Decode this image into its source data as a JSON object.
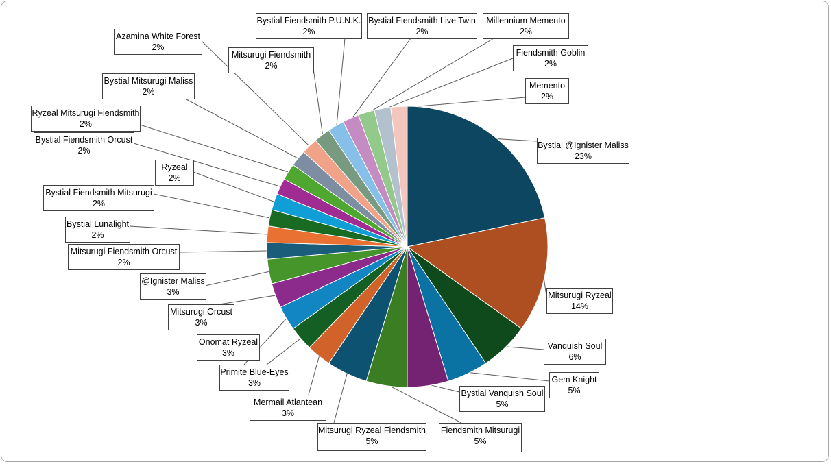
{
  "chart_data": {
    "type": "pie",
    "title": "",
    "unit": "%",
    "slices": [
      {
        "name": "Bystial @Ignister Maliss",
        "value": 23,
        "label": "23%",
        "color": "#0d4660"
      },
      {
        "name": "Mitsurugi Ryzeal",
        "value": 14,
        "label": "14%",
        "color": "#ae4f22"
      },
      {
        "name": "Vanquish Soul",
        "value": 6,
        "label": "6%",
        "color": "#0f4a1c"
      },
      {
        "name": "Gem Knight",
        "value": 5,
        "label": "5%",
        "color": "#0a73a3"
      },
      {
        "name": "Bystial Vanquish Soul",
        "value": 5,
        "label": "5%",
        "color": "#742373"
      },
      {
        "name": "Fiendsmith Mitsurugi",
        "value": 5,
        "label": "5%",
        "color": "#3a7d22"
      },
      {
        "name": "Mitsurugi Ryzeal Fiendsmith",
        "value": 5,
        "label": "5%",
        "color": "#0d5270"
      },
      {
        "name": "Mermail Atlantean",
        "value": 3,
        "label": "3%",
        "color": "#d0622a"
      },
      {
        "name": "Primite Blue-Eyes",
        "value": 3,
        "label": "3%",
        "color": "#145f23"
      },
      {
        "name": "Onomat Ryzeal",
        "value": 3,
        "label": "3%",
        "color": "#1286c3"
      },
      {
        "name": "Mitsurugi Orcust",
        "value": 3,
        "label": "3%",
        "color": "#8c2b8c"
      },
      {
        "name": "@Ignister Maliss",
        "value": 3,
        "label": "3%",
        "color": "#45952a"
      },
      {
        "name": "Mitsurugi Fiendsmith Orcust",
        "value": 2,
        "label": "2%",
        "color": "#1a5d7a"
      },
      {
        "name": "Bystial Lunalight",
        "value": 2,
        "label": "2%",
        "color": "#e97132"
      },
      {
        "name": "Bystial Fiendsmith Mitsurugi",
        "value": 2,
        "label": "2%",
        "color": "#196b24"
      },
      {
        "name": "Ryzeal",
        "value": 2,
        "label": "2%",
        "color": "#0f9ed5"
      },
      {
        "name": "Bystial Fiendsmith Orcust",
        "value": 2,
        "label": "2%",
        "color": "#a02b93"
      },
      {
        "name": "Ryzeal Mitsurugi Fiendsmith",
        "value": 2,
        "label": "2%",
        "color": "#4ea72e"
      },
      {
        "name": "Bystial Mitsurugi Maliss",
        "value": 2,
        "label": "2%",
        "color": "#7d8ea3"
      },
      {
        "name": "Azamina White Forest",
        "value": 2,
        "label": "2%",
        "color": "#f1a38a"
      },
      {
        "name": "Mitsurugi Fiendsmith",
        "value": 2,
        "label": "2%",
        "color": "#779a80"
      },
      {
        "name": "Bystial Fiendsmith P.U.N.K.",
        "value": 2,
        "label": "2%",
        "color": "#86bfe8"
      },
      {
        "name": "Bystial Fiendsmith Live Twin",
        "value": 2,
        "label": "2%",
        "color": "#c48cc2"
      },
      {
        "name": "Millennium Memento",
        "value": 2,
        "label": "2%",
        "color": "#93c98a"
      },
      {
        "name": "Fiendsmith Goblin",
        "value": 2,
        "label": "2%",
        "color": "#b3c0cd"
      },
      {
        "name": "Memento",
        "value": 2,
        "label": "2%",
        "color": "#f3c7bd"
      }
    ],
    "legend": "none",
    "data_labels": "callouts"
  }
}
